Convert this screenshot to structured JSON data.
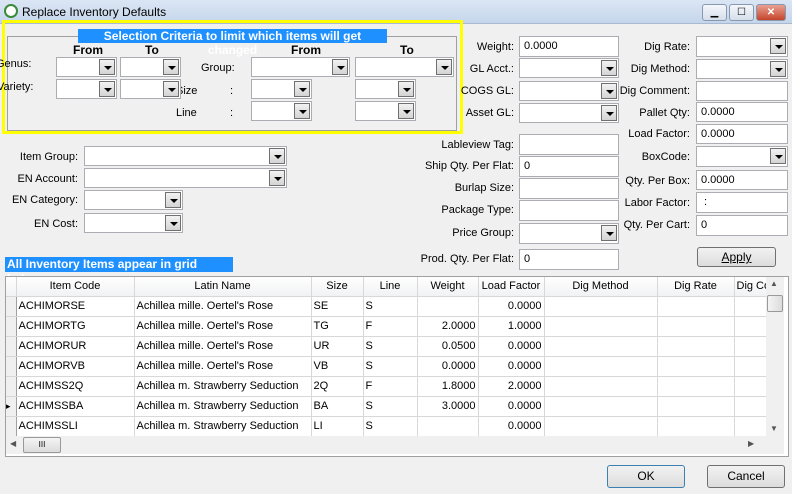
{
  "window": {
    "title": "Replace Inventory Defaults",
    "minimize": "▁",
    "maximize": "☐",
    "close": "✕"
  },
  "criteria": {
    "title": "Selection Criteria to limit which items will get changed",
    "from": "From",
    "to": "To",
    "genus": "Genus:",
    "variety": "Variety:",
    "group": "Group:",
    "size": "Size",
    "line": "Line",
    "colon": ":"
  },
  "left": {
    "item_group": "Item Group:",
    "en_account": "EN Account:",
    "en_category": "EN Category:",
    "en_cost": "EN Cost:"
  },
  "mid": {
    "weight": "Weight:",
    "weight_val": "0.0000",
    "gl_acct": "GL Acct.:",
    "cogs_gl": "COGS GL:",
    "asset_gl": "Asset GL:",
    "lableview": "Lableview Tag:",
    "ship_qty": "Ship Qty. Per Flat:",
    "ship_qty_val": "0",
    "burlap": "Burlap Size:",
    "package": "Package Type:",
    "price_group": "Price Group:",
    "prod_qty": "Prod. Qty. Per Flat:",
    "prod_qty_val": "0"
  },
  "right": {
    "dig_rate": "Dig Rate:",
    "dig_method": "Dig Method:",
    "dig_comment": "Dig Comment:",
    "pallet_qty": "Pallet Qty:",
    "pallet_qty_val": "0.0000",
    "load_factor": "Load Factor:",
    "load_factor_val": "0.0000",
    "boxcode": "BoxCode:",
    "qty_box": "Qty. Per Box:",
    "qty_box_val": "0.0000",
    "labor": "Labor Factor:",
    "labor_val": " :",
    "qty_cart": "Qty. Per Cart:",
    "qty_cart_val": "0",
    "apply": "Apply"
  },
  "grid": {
    "label": "All Inventory Items appear in grid below",
    "columns": [
      "Item Code",
      "Latin Name",
      "Size",
      "Line",
      "Weight",
      "Load Factor",
      "Dig Method",
      "Dig Rate",
      "Dig Co"
    ],
    "rows": [
      [
        "ACHIMORSE",
        "Achillea mille. Oertel's Rose",
        "SE",
        "S",
        "",
        "0.0000",
        "",
        "",
        ""
      ],
      [
        "ACHIMORTG",
        "Achillea mille. Oertel's Rose",
        "TG",
        "F",
        "2.0000",
        "1.0000",
        "",
        "",
        ""
      ],
      [
        "ACHIMORUR",
        "Achillea mille. Oertel's Rose",
        "UR",
        "S",
        "0.0500",
        "0.0000",
        "",
        "",
        ""
      ],
      [
        "ACHIMORVB",
        "Achillea mille. Oertel's Rose",
        "VB",
        "S",
        "0.0000",
        "0.0000",
        "",
        "",
        ""
      ],
      [
        "ACHIMSS2Q",
        "Achillea m. Strawberry Seduction",
        "2Q",
        "F",
        "1.8000",
        "2.0000",
        "",
        "",
        ""
      ],
      [
        "ACHIMSSBA",
        "Achillea m. Strawberry Seduction",
        "BA",
        "S",
        "3.0000",
        "0.0000",
        "",
        "",
        ""
      ],
      [
        "ACHIMSSLI",
        "Achillea m. Strawberry Seduction",
        "LI",
        "S",
        "",
        "0.0000",
        "",
        "",
        ""
      ]
    ],
    "current_row": 5
  },
  "buttons": {
    "ok": "OK",
    "cancel": "Cancel"
  }
}
